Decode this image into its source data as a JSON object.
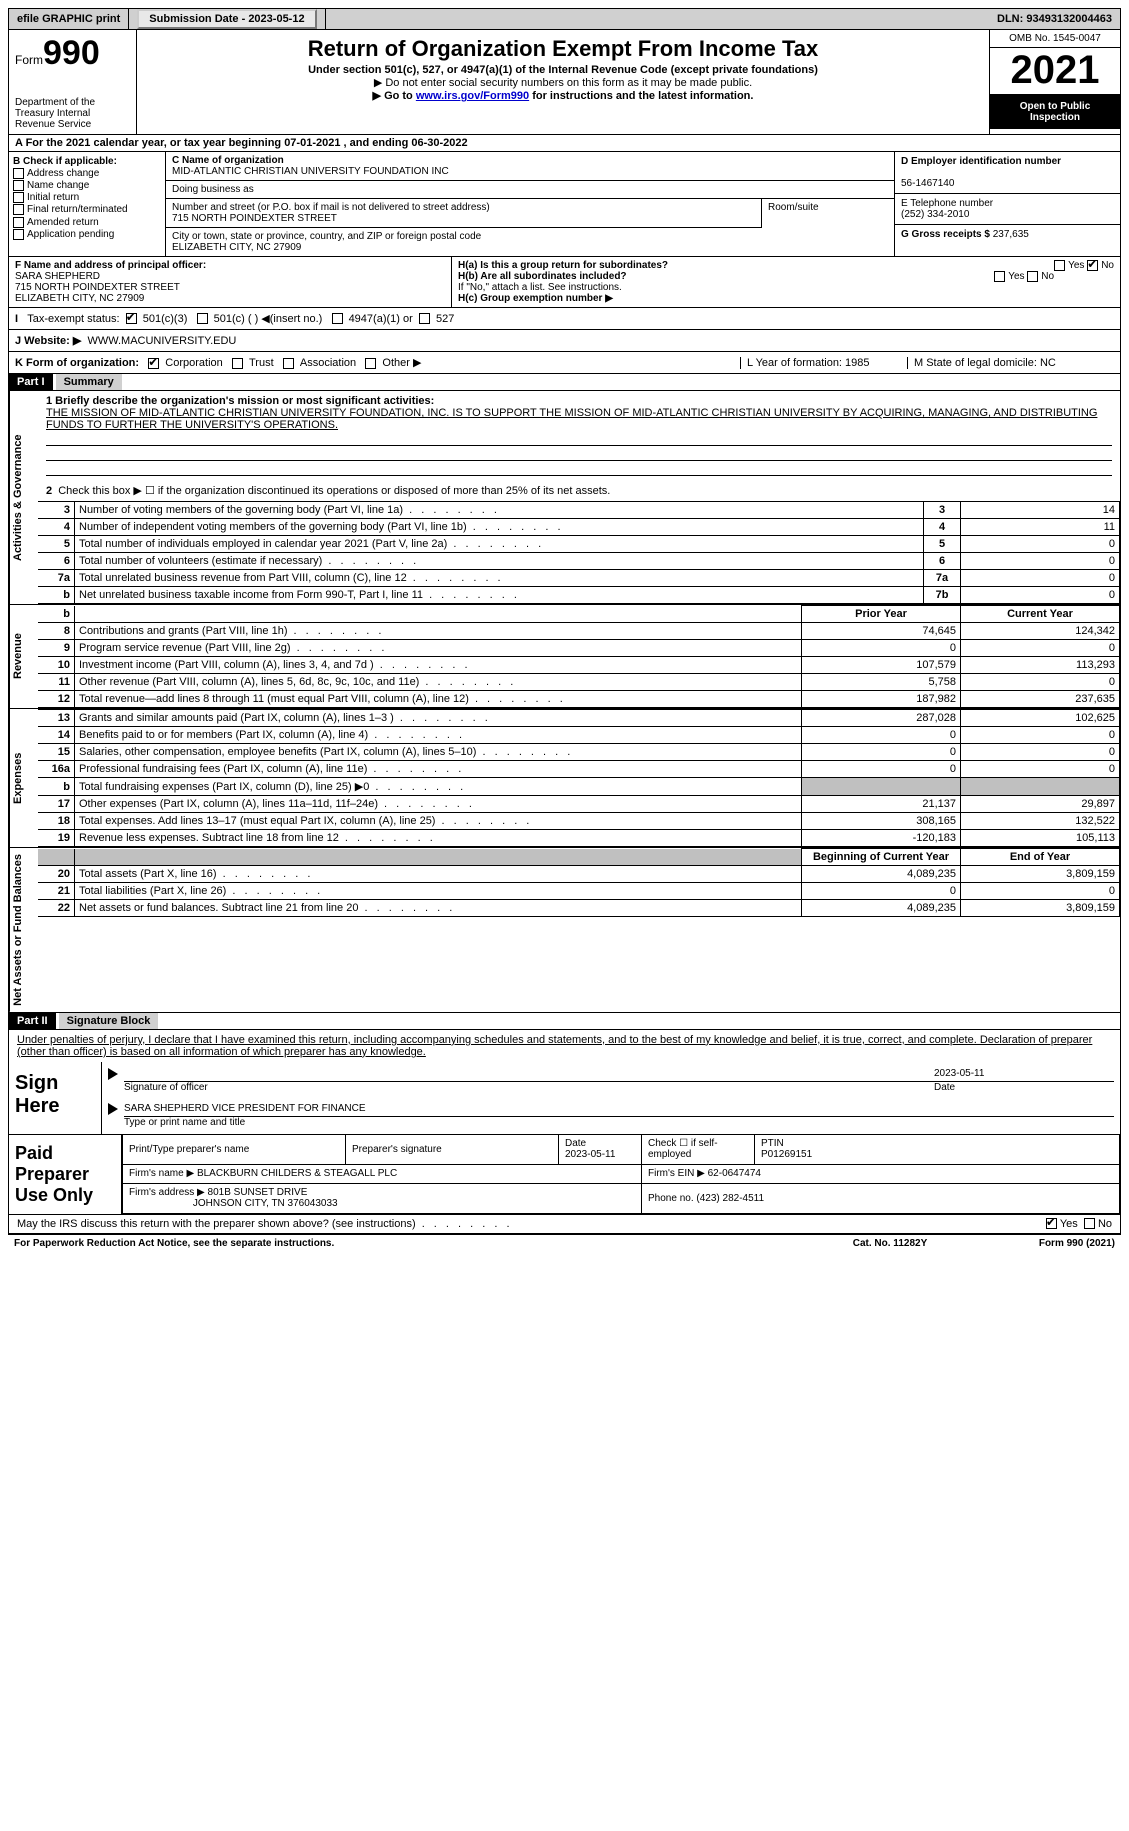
{
  "topbar": {
    "efile": "efile GRAPHIC print",
    "submission": "Submission Date - 2023-05-12",
    "dln": "DLN: 93493132004463"
  },
  "header": {
    "form_small": "Form",
    "form_big": "990",
    "title": "Return of Organization Exempt From Income Tax",
    "subtitle": "Under section 501(c), 527, or 4947(a)(1) of the Internal Revenue Code (except private foundations)",
    "note1": "▶ Do not enter social security numbers on this form as it may be made public.",
    "note2_prefix": "▶ Go to ",
    "note2_link": "www.irs.gov/Form990",
    "note2_suffix": " for instructions and the latest information.",
    "dept": "Department of the Treasury\nInternal Revenue Service",
    "omb": "OMB No. 1545-0047",
    "year": "2021",
    "open": "Open to Public Inspection"
  },
  "rowA": "A For the 2021 calendar year, or tax year beginning 07-01-2021   , and ending 06-30-2022",
  "colB": {
    "label": "B Check if applicable:",
    "items": [
      "Address change",
      "Name change",
      "Initial return",
      "Final return/terminated",
      "Amended return",
      "Application pending"
    ]
  },
  "colC": {
    "name_label": "C Name of organization",
    "name": "MID-ATLANTIC CHRISTIAN UNIVERSITY FOUNDATION INC",
    "dba_label": "Doing business as",
    "street_label": "Number and street (or P.O. box if mail is not delivered to street address)",
    "street": "715 NORTH POINDEXTER STREET",
    "room_label": "Room/suite",
    "city_label": "City or town, state or province, country, and ZIP or foreign postal code",
    "city": "ELIZABETH CITY, NC  27909"
  },
  "colDE": {
    "d_label": "D Employer identification number",
    "d_val": "56-1467140",
    "e_label": "E Telephone number",
    "e_val": "(252) 334-2010",
    "g_label": "G Gross receipts $ ",
    "g_val": "237,635"
  },
  "fgh": {
    "f_label": "F Name and address of principal officer:",
    "f_name": "SARA SHEPHERD",
    "f_addr1": "715 NORTH POINDEXTER STREET",
    "f_addr2": "ELIZABETH CITY, NC  27909",
    "ha": "H(a)  Is this a group return for subordinates?",
    "hb": "H(b)  Are all subordinates included?",
    "hb_note": "If \"No,\" attach a list. See instructions.",
    "hc": "H(c)  Group exemption number ▶",
    "yes": "Yes",
    "no": "No"
  },
  "status": {
    "label": "Tax-exempt status:",
    "opts": [
      "501(c)(3)",
      "501(c) (  ) ◀(insert no.)",
      "4947(a)(1) or",
      "527"
    ]
  },
  "website": {
    "label": "J   Website: ▶",
    "val": "WWW.MACUNIVERSITY.EDU"
  },
  "kform": {
    "k": "K Form of organization:",
    "opts": [
      "Corporation",
      "Trust",
      "Association",
      "Other ▶"
    ],
    "l": "L Year of formation: 1985",
    "m": "M State of legal domicile: NC"
  },
  "partI": {
    "tag": "Part I",
    "title": "Summary"
  },
  "mission": {
    "line": "1   Briefly describe the organization's mission or most significant activities:",
    "text": "THE MISSION OF MID-ATLANTIC CHRISTIAN UNIVERSITY FOUNDATION, INC. IS TO SUPPORT THE MISSION OF MID-ATLANTIC CHRISTIAN UNIVERSITY BY ACQUIRING, MANAGING, AND DISTRIBUTING FUNDS TO FURTHER THE UNIVERSITY'S OPERATIONS."
  },
  "governance": {
    "line2": "Check this box ▶ ☐  if the organization discontinued its operations or disposed of more than 25% of its net assets.",
    "rows": [
      {
        "n": "3",
        "desc": "Number of voting members of the governing body (Part VI, line 1a)",
        "box": "3",
        "val": "14"
      },
      {
        "n": "4",
        "desc": "Number of independent voting members of the governing body (Part VI, line 1b)",
        "box": "4",
        "val": "11"
      },
      {
        "n": "5",
        "desc": "Total number of individuals employed in calendar year 2021 (Part V, line 2a)",
        "box": "5",
        "val": "0"
      },
      {
        "n": "6",
        "desc": "Total number of volunteers (estimate if necessary)",
        "box": "6",
        "val": "0"
      },
      {
        "n": "7a",
        "desc": "Total unrelated business revenue from Part VIII, column (C), line 12",
        "box": "7a",
        "val": "0"
      },
      {
        "n": "b",
        "desc": "Net unrelated business taxable income from Form 990-T, Part I, line 11",
        "box": "7b",
        "val": "0"
      }
    ]
  },
  "columns": {
    "prior": "Prior Year",
    "current": "Current Year"
  },
  "revenue": [
    {
      "n": "8",
      "desc": "Contributions and grants (Part VIII, line 1h)",
      "p": "74,645",
      "c": "124,342"
    },
    {
      "n": "9",
      "desc": "Program service revenue (Part VIII, line 2g)",
      "p": "0",
      "c": "0"
    },
    {
      "n": "10",
      "desc": "Investment income (Part VIII, column (A), lines 3, 4, and 7d )",
      "p": "107,579",
      "c": "113,293"
    },
    {
      "n": "11",
      "desc": "Other revenue (Part VIII, column (A), lines 5, 6d, 8c, 9c, 10c, and 11e)",
      "p": "5,758",
      "c": "0"
    },
    {
      "n": "12",
      "desc": "Total revenue—add lines 8 through 11 (must equal Part VIII, column (A), line 12)",
      "p": "187,982",
      "c": "237,635"
    }
  ],
  "expenses": [
    {
      "n": "13",
      "desc": "Grants and similar amounts paid (Part IX, column (A), lines 1–3 )",
      "p": "287,028",
      "c": "102,625"
    },
    {
      "n": "14",
      "desc": "Benefits paid to or for members (Part IX, column (A), line 4)",
      "p": "0",
      "c": "0"
    },
    {
      "n": "15",
      "desc": "Salaries, other compensation, employee benefits (Part IX, column (A), lines 5–10)",
      "p": "0",
      "c": "0"
    },
    {
      "n": "16a",
      "desc": "Professional fundraising fees (Part IX, column (A), line 11e)",
      "p": "0",
      "c": "0"
    },
    {
      "n": "b",
      "desc": "Total fundraising expenses (Part IX, column (D), line 25) ▶0",
      "p": "",
      "c": "",
      "grey": true
    },
    {
      "n": "17",
      "desc": "Other expenses (Part IX, column (A), lines 11a–11d, 11f–24e)",
      "p": "21,137",
      "c": "29,897"
    },
    {
      "n": "18",
      "desc": "Total expenses. Add lines 13–17 (must equal Part IX, column (A), line 25)",
      "p": "308,165",
      "c": "132,522"
    },
    {
      "n": "19",
      "desc": "Revenue less expenses. Subtract line 18 from line 12",
      "p": "-120,183",
      "c": "105,113"
    }
  ],
  "netassets_cols": {
    "begin": "Beginning of Current Year",
    "end": "End of Year"
  },
  "netassets": [
    {
      "n": "20",
      "desc": "Total assets (Part X, line 16)",
      "p": "4,089,235",
      "c": "3,809,159"
    },
    {
      "n": "21",
      "desc": "Total liabilities (Part X, line 26)",
      "p": "0",
      "c": "0"
    },
    {
      "n": "22",
      "desc": "Net assets or fund balances. Subtract line 21 from line 20",
      "p": "4,089,235",
      "c": "3,809,159"
    }
  ],
  "vtabs": {
    "gov": "Activities & Governance",
    "rev": "Revenue",
    "exp": "Expenses",
    "net": "Net Assets or Fund Balances"
  },
  "partII": {
    "tag": "Part II",
    "title": "Signature Block"
  },
  "sig_text": "Under penalties of perjury, I declare that I have examined this return, including accompanying schedules and statements, and to the best of my knowledge and belief, it is true, correct, and complete. Declaration of preparer (other than officer) is based on all information of which preparer has any knowledge.",
  "sign": {
    "label": "Sign Here",
    "date": "2023-05-11",
    "sig_label": "Signature of officer",
    "date_label": "Date",
    "name": "SARA SHEPHERD  VICE PRESIDENT FOR FINANCE",
    "name_label": "Type or print name and title"
  },
  "paid": {
    "label": "Paid Preparer Use Only",
    "col1": "Print/Type preparer's name",
    "col2": "Preparer's signature",
    "col3_label": "Date",
    "col3": "2023-05-11",
    "col4": "Check ☐ if self-employed",
    "col5_label": "PTIN",
    "col5": "P01269151",
    "firm_label": "Firm's name    ▶",
    "firm": "BLACKBURN CHILDERS & STEAGALL PLC",
    "firm_ein_label": "Firm's EIN ▶",
    "firm_ein": "62-0647474",
    "addr_label": "Firm's address ▶",
    "addr1": "801B SUNSET DRIVE",
    "addr2": "JOHNSON CITY, TN  376043033",
    "phone_label": "Phone no.",
    "phone": "(423) 282-4511"
  },
  "discuss": "May the IRS discuss this return with the preparer shown above? (see instructions)",
  "footer": {
    "l": "For Paperwork Reduction Act Notice, see the separate instructions.",
    "m": "Cat. No. 11282Y",
    "r": "Form 990 (2021)"
  }
}
